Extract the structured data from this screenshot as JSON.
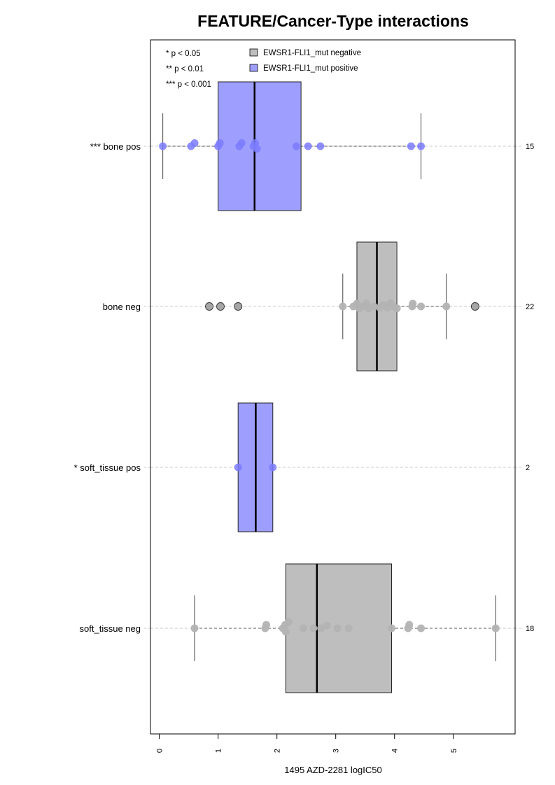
{
  "chart_data": {
    "type": "box",
    "title": "FEATURE/Cancer-Type interactions",
    "xlabel": "1495 AZD-2281 logIC50",
    "ylabel": "",
    "xlim": [
      -0.15,
      6.05
    ],
    "x_ticks": [
      0,
      1,
      2,
      3,
      4,
      5
    ],
    "x_tick_labels": [
      "0",
      "1",
      "2",
      "3",
      "4",
      "5"
    ],
    "grid": "horizontal dashed reference lines",
    "legend": {
      "placement": "top",
      "significance": [
        "* p < 0.05",
        "** p < 0.01",
        "*** p < 0.001"
      ],
      "entries": [
        {
          "label": "EWSR1-FLI1_mut negative",
          "color": "#bebebe"
        },
        {
          "label": "EWSR1-FLI1_mut positive",
          "color": "#9e9eff"
        }
      ]
    },
    "colors": {
      "negative_box": "#bebebe",
      "positive_box": "#9e9eff",
      "negative_point": "#b3b3b3",
      "positive_point": "#7b7bff",
      "outlier_point": "#a6a6a6"
    },
    "groups": [
      {
        "label": "*** bone pos",
        "n": "15",
        "mutation": "positive",
        "box": {
          "whisker_low": 0.06,
          "q1": 1.0,
          "median": 1.62,
          "q3": 2.41,
          "whisker_high": 4.45
        },
        "points": [
          [
            0.06,
            0
          ],
          [
            0.54,
            0
          ],
          [
            0.6,
            0.5
          ],
          [
            1.0,
            0
          ],
          [
            1.03,
            0.5
          ],
          [
            1.36,
            0
          ],
          [
            1.4,
            0.5
          ],
          [
            1.6,
            0
          ],
          [
            1.63,
            0.5
          ],
          [
            1.66,
            -0.4
          ],
          [
            2.33,
            0
          ],
          [
            2.53,
            0
          ],
          [
            2.74,
            0
          ],
          [
            4.28,
            0
          ],
          [
            4.45,
            0
          ]
        ],
        "outliers": []
      },
      {
        "label": "bone neg",
        "n": "22",
        "mutation": "negative",
        "box": {
          "whisker_low": 3.12,
          "q1": 3.36,
          "median": 3.7,
          "q3": 4.04,
          "whisker_high": 4.88
        },
        "points": [
          [
            3.12,
            0
          ],
          [
            3.3,
            0
          ],
          [
            3.36,
            0.45
          ],
          [
            3.4,
            -0.3
          ],
          [
            3.47,
            0
          ],
          [
            3.52,
            0.5
          ],
          [
            3.56,
            -0.3
          ],
          [
            3.65,
            0
          ],
          [
            3.75,
            -0.2
          ],
          [
            3.81,
            0.25
          ],
          [
            3.88,
            -0.2
          ],
          [
            3.93,
            0.55
          ],
          [
            3.98,
            0
          ],
          [
            4.04,
            -0.3
          ],
          [
            4.3,
            0
          ],
          [
            4.31,
            0.45
          ],
          [
            4.45,
            0
          ],
          [
            4.88,
            0
          ]
        ],
        "outliers": [
          0.85,
          1.04,
          1.34,
          5.37
        ]
      },
      {
        "label": "* soft_tissue pos",
        "n": "2",
        "mutation": "positive",
        "box": {
          "whisker_low": 1.34,
          "q1": 1.34,
          "median": 1.64,
          "q3": 1.93,
          "whisker_high": 1.93
        },
        "points": [
          [
            1.34,
            0
          ],
          [
            1.93,
            0
          ]
        ],
        "outliers": []
      },
      {
        "label": "soft_tissue neg",
        "n": "18",
        "mutation": "negative",
        "box": {
          "whisker_low": 0.6,
          "q1": 2.15,
          "median": 2.68,
          "q3": 3.95,
          "whisker_high": 5.72
        },
        "points": [
          [
            0.6,
            0
          ],
          [
            1.8,
            0
          ],
          [
            1.82,
            0.55
          ],
          [
            2.1,
            0
          ],
          [
            2.14,
            0.55
          ],
          [
            2.15,
            -0.55
          ],
          [
            2.2,
            1.0
          ],
          [
            2.45,
            0
          ],
          [
            2.62,
            0
          ],
          [
            2.75,
            0
          ],
          [
            2.85,
            0.45
          ],
          [
            3.03,
            0
          ],
          [
            3.22,
            0
          ],
          [
            3.95,
            0
          ],
          [
            4.23,
            0
          ],
          [
            4.25,
            0.55
          ],
          [
            4.45,
            0
          ],
          [
            5.72,
            0
          ]
        ],
        "outliers": []
      }
    ]
  }
}
